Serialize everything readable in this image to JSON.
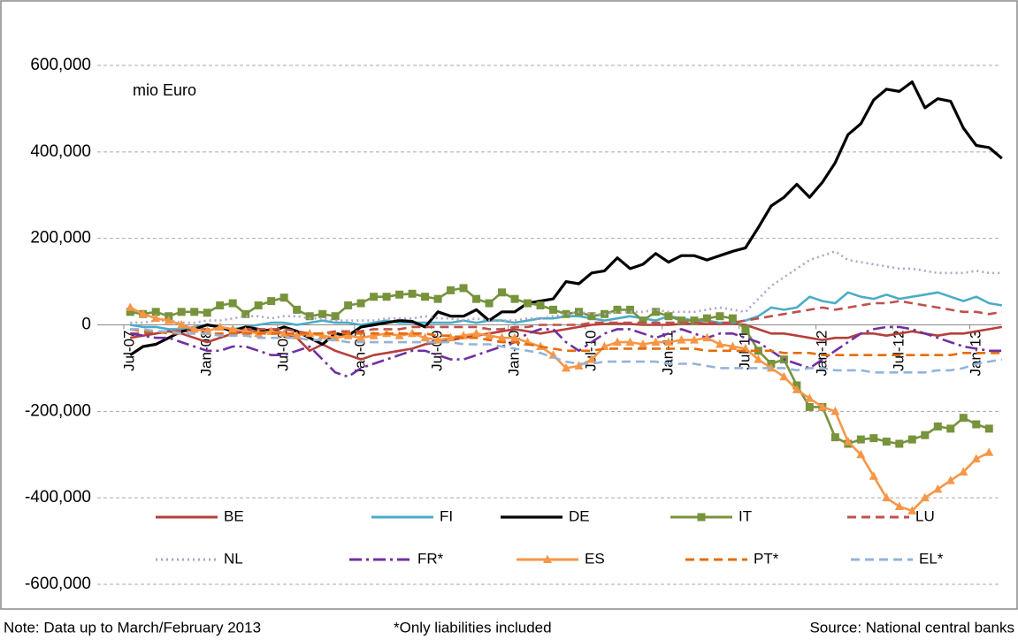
{
  "chart_data": {
    "type": "line",
    "unit_label": "mio Euro",
    "notes": [
      "Note: Data up to March/February 2013",
      "*Only liabilities included",
      "Source: National central banks"
    ],
    "categories": [
      "Jul-07",
      null,
      null,
      null,
      null,
      null,
      "Jan-08",
      null,
      null,
      null,
      null,
      null,
      "Jul-08",
      null,
      null,
      null,
      null,
      null,
      "Jan-09",
      null,
      null,
      null,
      null,
      null,
      "Jul-09",
      null,
      null,
      null,
      null,
      null,
      "Jan-10",
      null,
      null,
      null,
      null,
      null,
      "Jul-10",
      null,
      null,
      null,
      null,
      null,
      "Jan-11",
      null,
      null,
      null,
      null,
      null,
      "Jul-11",
      null,
      null,
      null,
      null,
      null,
      "Jan-12",
      null,
      null,
      null,
      null,
      null,
      "Jul-12",
      null,
      null,
      null,
      null,
      null,
      "Jan-13",
      null,
      null
    ],
    "ylim": [
      -600000,
      600000
    ],
    "yticks": [
      {
        "value": -600000,
        "label": "-600,000"
      },
      {
        "value": -400000,
        "label": "-400,000"
      },
      {
        "value": -200000,
        "label": "-200,000"
      },
      0,
      {
        "value": 200000,
        "label": "200,000"
      },
      {
        "value": 400000,
        "label": "400,000"
      },
      {
        "value": 600000,
        "label": "600,000"
      }
    ],
    "grid": true,
    "series": [
      {
        "name": "BE",
        "color": "#b5403b",
        "dash": "solid",
        "values": [
          -30000,
          -25000,
          -20000,
          -15000,
          -20000,
          -30000,
          -40000,
          -30000,
          -20000,
          -15000,
          -15000,
          -10000,
          -20000,
          -30000,
          -60000,
          -45000,
          -60000,
          -70000,
          -80000,
          -70000,
          -65000,
          -60000,
          -55000,
          -45000,
          -40000,
          -35000,
          -30000,
          -25000,
          -20000,
          -15000,
          -10000,
          -15000,
          -20000,
          -15000,
          -10000,
          -5000,
          0,
          2000,
          3000,
          2000,
          0,
          0,
          0,
          2000,
          3000,
          2000,
          2000,
          3000,
          0,
          -10000,
          -20000,
          -20000,
          -25000,
          -30000,
          -35000,
          -30000,
          -30000,
          -20000,
          -20000,
          -25000,
          -20000,
          -15000,
          -20000,
          -25000,
          -20000,
          -20000,
          -15000,
          -10000,
          -5000
        ]
      },
      {
        "name": "FI",
        "color": "#4bacc6",
        "dash": "solid",
        "values": [
          0,
          -5000,
          -5000,
          -10000,
          -10000,
          -5000,
          0,
          -5000,
          -10000,
          -5000,
          0,
          5000,
          5000,
          0,
          5000,
          10000,
          5000,
          5000,
          0,
          5000,
          10000,
          5000,
          5000,
          5000,
          5000,
          5000,
          10000,
          5000,
          10000,
          10000,
          5000,
          10000,
          15000,
          15000,
          20000,
          20000,
          15000,
          10000,
          15000,
          20000,
          15000,
          10000,
          20000,
          15000,
          10000,
          10000,
          5000,
          5000,
          10000,
          20000,
          40000,
          35000,
          40000,
          65000,
          55000,
          50000,
          75000,
          65000,
          60000,
          70000,
          60000,
          65000,
          70000,
          75000,
          65000,
          55000,
          65000,
          50000,
          45000
        ]
      },
      {
        "name": "DE",
        "color": "#000000",
        "dash": "solid",
        "values": [
          -70000,
          -50000,
          -45000,
          -30000,
          -15000,
          -10000,
          0,
          -5000,
          -15000,
          -5000,
          -10000,
          -15000,
          -5000,
          -15000,
          -30000,
          -45000,
          -20000,
          -25000,
          -5000,
          0,
          5000,
          10000,
          8000,
          -5000,
          30000,
          20000,
          20000,
          35000,
          10000,
          30000,
          30000,
          50000,
          55000,
          60000,
          100000,
          95000,
          120000,
          125000,
          155000,
          130000,
          140000,
          165000,
          145000,
          160000,
          160000,
          150000,
          160000,
          170000,
          178000,
          225000,
          275000,
          295000,
          325000,
          295000,
          330000,
          375000,
          440000,
          465000,
          520000,
          545000,
          540000,
          562000,
          502000,
          523000,
          517000,
          455000,
          415000,
          410000,
          385000
        ]
      },
      {
        "name": "IT",
        "color": "#77933c",
        "dash": "solid",
        "marker": "square",
        "values": [
          30000,
          25000,
          30000,
          20000,
          30000,
          30000,
          28000,
          45000,
          50000,
          25000,
          45000,
          55000,
          63000,
          35000,
          20000,
          25000,
          20000,
          45000,
          50000,
          65000,
          65000,
          70000,
          72000,
          65000,
          60000,
          80000,
          85000,
          60000,
          50000,
          75000,
          60000,
          50000,
          45000,
          35000,
          25000,
          30000,
          20000,
          25000,
          35000,
          35000,
          10000,
          30000,
          20000,
          10000,
          10000,
          15000,
          20000,
          15000,
          -10000,
          -60000,
          -90000,
          -80000,
          -140000,
          -190000,
          -190000,
          -260000,
          -275000,
          -265000,
          -262000,
          -270000,
          -275000,
          -265000,
          -255000,
          -235000,
          -240000,
          -215000,
          -230000,
          -240000,
          null
        ]
      },
      {
        "name": "LU",
        "color": "#c0504d",
        "dash": "dashed",
        "values": [
          -20000,
          -20000,
          -15000,
          -15000,
          -15000,
          -10000,
          -10000,
          -10000,
          -15000,
          -10000,
          -10000,
          -10000,
          -10000,
          -15000,
          -20000,
          -20000,
          -15000,
          -15000,
          -15000,
          -10000,
          -10000,
          -10000,
          -5000,
          -5000,
          -5000,
          -5000,
          -5000,
          -5000,
          -10000,
          -10000,
          -5000,
          -5000,
          0,
          0,
          0,
          0,
          5000,
          5000,
          5000,
          5000,
          5000,
          5000,
          5000,
          5000,
          5000,
          5000,
          5000,
          5000,
          10000,
          15000,
          20000,
          25000,
          30000,
          35000,
          40000,
          35000,
          40000,
          45000,
          50000,
          50000,
          55000,
          50000,
          45000,
          40000,
          35000,
          30000,
          30000,
          25000,
          30000
        ]
      },
      {
        "name": "NL",
        "color": "#b3a2c7",
        "dash": "dotted",
        "values": [
          5000,
          5000,
          10000,
          10000,
          5000,
          5000,
          10000,
          10000,
          15000,
          20000,
          20000,
          15000,
          20000,
          20000,
          15000,
          15000,
          10000,
          10000,
          10000,
          10000,
          15000,
          15000,
          15000,
          20000,
          15000,
          15000,
          10000,
          15000,
          10000,
          10000,
          10000,
          15000,
          15000,
          20000,
          25000,
          30000,
          25000,
          25000,
          30000,
          30000,
          30000,
          35000,
          30000,
          30000,
          30000,
          35000,
          40000,
          35000,
          30000,
          60000,
          90000,
          110000,
          130000,
          150000,
          160000,
          170000,
          150000,
          145000,
          140000,
          135000,
          130000,
          130000,
          125000,
          120000,
          120000,
          120000,
          125000,
          120000,
          120000
        ]
      },
      {
        "name": "FR*",
        "color": "#7030a0",
        "dash": "dashdot",
        "values": [
          -20000,
          -25000,
          -30000,
          -30000,
          -40000,
          -50000,
          -60000,
          -60000,
          -50000,
          -50000,
          -60000,
          -70000,
          -70000,
          -60000,
          -50000,
          -80000,
          -110000,
          -120000,
          -100000,
          -90000,
          -80000,
          -70000,
          -60000,
          -60000,
          -70000,
          -80000,
          -80000,
          -70000,
          -60000,
          -50000,
          -40000,
          -20000,
          -10000,
          -10000,
          -40000,
          -60000,
          -40000,
          -20000,
          -10000,
          -10000,
          -20000,
          -30000,
          -20000,
          -10000,
          -20000,
          -30000,
          -20000,
          -20000,
          -30000,
          -40000,
          -60000,
          -80000,
          -90000,
          -100000,
          -80000,
          -60000,
          -40000,
          -20000,
          -10000,
          -5000,
          -5000,
          -10000,
          -20000,
          -30000,
          -40000,
          -50000,
          -55000,
          -60000,
          -60000
        ]
      },
      {
        "name": "ES",
        "color": "#f79646",
        "dash": "solid",
        "marker": "triangle",
        "values": [
          40000,
          25000,
          15000,
          10000,
          0,
          -10000,
          -15000,
          -5000,
          -10000,
          -15000,
          -20000,
          -15000,
          -20000,
          -25000,
          -20000,
          -25000,
          -30000,
          -25000,
          -30000,
          -25000,
          -20000,
          -25000,
          -20000,
          -30000,
          -35000,
          -30000,
          -25000,
          -20000,
          -25000,
          -30000,
          -30000,
          -40000,
          -50000,
          -70000,
          -100000,
          -95000,
          -80000,
          -50000,
          -40000,
          -40000,
          -45000,
          -40000,
          -40000,
          -35000,
          -35000,
          -30000,
          -45000,
          -50000,
          -55000,
          -80000,
          -100000,
          -120000,
          -150000,
          -170000,
          -190000,
          -200000,
          -270000,
          -300000,
          -350000,
          -400000,
          -420000,
          -430000,
          -400000,
          -380000,
          -360000,
          -340000,
          -310000,
          -295000,
          null
        ]
      },
      {
        "name": "PT*",
        "color": "#e46c0a",
        "dash": "dashed",
        "values": [
          -10000,
          -15000,
          -15000,
          -20000,
          -20000,
          -20000,
          -20000,
          -20000,
          -20000,
          -20000,
          -20000,
          -20000,
          -20000,
          -20000,
          -20000,
          -20000,
          -20000,
          -20000,
          -20000,
          -20000,
          -20000,
          -20000,
          -20000,
          -20000,
          -25000,
          -25000,
          -30000,
          -30000,
          -35000,
          -40000,
          -40000,
          -45000,
          -50000,
          -55000,
          -60000,
          -60000,
          -60000,
          -55000,
          -55000,
          -55000,
          -55000,
          -55000,
          -55000,
          -55000,
          -55000,
          -60000,
          -60000,
          -60000,
          -60000,
          -60000,
          -60000,
          -65000,
          -65000,
          -65000,
          -70000,
          -70000,
          -70000,
          -70000,
          -70000,
          -70000,
          -70000,
          -70000,
          -70000,
          -70000,
          -70000,
          -65000,
          -65000,
          -65000,
          -65000
        ]
      },
      {
        "name": "EL*",
        "color": "#95b3d7",
        "dash": "dashed",
        "values": [
          -10000,
          -10000,
          -15000,
          -15000,
          -20000,
          -20000,
          -20000,
          -25000,
          -25000,
          -25000,
          -30000,
          -30000,
          -30000,
          -30000,
          -35000,
          -35000,
          -35000,
          -40000,
          -40000,
          -40000,
          -40000,
          -40000,
          -40000,
          -40000,
          -40000,
          -40000,
          -45000,
          -45000,
          -45000,
          -50000,
          -55000,
          -60000,
          -65000,
          -75000,
          -85000,
          -90000,
          -90000,
          -85000,
          -85000,
          -85000,
          -85000,
          -85000,
          -90000,
          -90000,
          -90000,
          -95000,
          -100000,
          -100000,
          -100000,
          -100000,
          -100000,
          -100000,
          -105000,
          -100000,
          -100000,
          -105000,
          -105000,
          -105000,
          -110000,
          -110000,
          -110000,
          -110000,
          -110000,
          -105000,
          -105000,
          -100000,
          -90000,
          -85000,
          -80000
        ]
      }
    ]
  }
}
